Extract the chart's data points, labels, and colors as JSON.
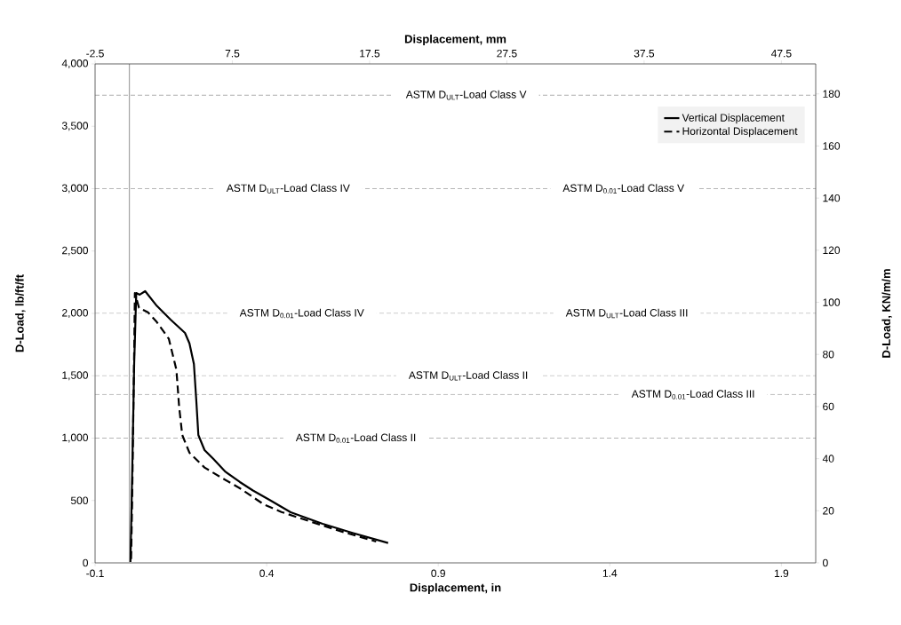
{
  "chart_data": {
    "type": "line",
    "xlabel": "Displacement, in",
    "x2label": "Displacement, mm",
    "ylabel": "D-Load, lb/ft/ft",
    "y2label": "D-Load, KN/m/m",
    "xlim": [
      -0.1,
      2.0
    ],
    "xticks": [
      -0.1,
      0.4,
      0.9,
      1.4,
      1.9
    ],
    "x2lim": [
      -2.5,
      50
    ],
    "x2ticks": [
      -2.5,
      7.5,
      17.5,
      27.5,
      37.5,
      47.5
    ],
    "ylim": [
      0,
      4000
    ],
    "yticks": [
      0,
      500,
      {
        "value": 1000,
        "label": "1,000"
      },
      {
        "value": 1500,
        "label": "1,500"
      },
      {
        "value": 2000,
        "label": "2,000"
      },
      {
        "value": 2500,
        "label": "2,500"
      },
      {
        "value": 3000,
        "label": "3,000"
      },
      {
        "value": 3500,
        "label": "3,500"
      },
      {
        "value": 4000,
        "label": "4,000"
      }
    ],
    "y2lim": [
      0,
      191.5
    ],
    "y2ticks": [
      0,
      20,
      40,
      60,
      80,
      100,
      120,
      140,
      160,
      180
    ],
    "legend": "top right",
    "grid": false,
    "marker": "none",
    "series": [
      {
        "name": "Vertical Displacement",
        "color": "#000000",
        "line_style": "solid",
        "x": [
          0.003,
          0.006,
          0.01,
          0.014,
          0.02,
          0.03,
          0.046,
          0.08,
          0.12,
          0.162,
          0.175,
          0.188,
          0.195,
          0.201,
          0.219,
          0.245,
          0.28,
          0.322,
          0.36,
          0.408,
          0.47,
          0.563,
          0.65,
          0.754
        ],
        "values": [
          7,
          400,
          1000,
          1600,
          2163,
          2150,
          2178,
          2060,
          1950,
          1843,
          1760,
          1594,
          1300,
          1025,
          904,
          833,
          730,
          648,
          580,
          505,
          406,
          313,
          240,
          159
        ]
      },
      {
        "name": "Horizontal Displacement",
        "color": "#000000",
        "line_style": "dashed",
        "x": [
          0.005,
          0.008,
          0.011,
          0.014,
          0.016,
          0.028,
          0.054,
          0.08,
          0.115,
          0.137,
          0.145,
          0.154,
          0.175,
          0.219,
          0.27,
          0.322,
          0.391,
          0.443,
          0.521,
          0.62,
          0.719
        ],
        "values": [
          30,
          500,
          1100,
          1700,
          2163,
          2045,
          2009,
          1930,
          1796,
          1547,
          1250,
          1025,
          883,
          764,
          680,
          598,
          470,
          408,
          337,
          250,
          171
        ]
      }
    ],
    "ref_lines": [
      {
        "axis": "x",
        "value": 0,
        "color": "#a6a6a6",
        "line_style": "solid"
      },
      {
        "axis": "y",
        "value": 3750,
        "label": "ASTM D$_{ULT}$-Load Class V",
        "color": "#595959",
        "line_style": "dashed"
      },
      {
        "axis": "y",
        "value": 3000,
        "label": "ASTM D$_{ULT}$-Load Class IV",
        "color": "#595959",
        "line_style": "dashed"
      },
      {
        "axis": "y",
        "value": 2000,
        "label": "ASTM D$_{0.01}$-Load Class IV",
        "color": "#595959",
        "line_style": "dashed"
      },
      {
        "axis": "y",
        "value": 1500,
        "label": "ASTM D$_{ULT}$-Load Class II",
        "color": "#595959",
        "line_style": "dashed"
      },
      {
        "axis": "y",
        "value": 1350,
        "label": "ASTM D$_{0.01}$-Load Class III",
        "color": "#595959",
        "line_style": "dashed"
      },
      {
        "axis": "y",
        "value": 1000,
        "label": "ASTM D$_{0.01}$-Load Class II",
        "color": "#595959",
        "line_style": "dashed"
      }
    ],
    "annotations": [
      {
        "text": "ASTM D$_{0.01}$-Load Class V",
        "x": 1.44,
        "y": 3000
      },
      {
        "text": "ASTM D$_{ULT}$-Load Class III",
        "x": 1.45,
        "y": 2000
      }
    ]
  }
}
